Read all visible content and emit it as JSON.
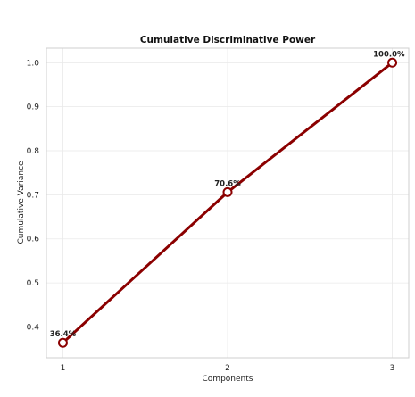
{
  "chart_data": {
    "type": "line",
    "title": "Cumulative Discriminative Power",
    "xlabel": "Components",
    "ylabel": "Cumulative Variance",
    "x": [
      1,
      2,
      3
    ],
    "x_ticks": [
      "1",
      "2",
      "3"
    ],
    "y_ticks": [
      "0.4",
      "0.5",
      "0.6",
      "0.7",
      "0.8",
      "0.9",
      "1.0"
    ],
    "xlim": [
      0.9,
      3.1
    ],
    "ylim": [
      0.33,
      1.033
    ],
    "grid": true,
    "series": [
      {
        "values": [
          0.364,
          0.706,
          1.0
        ],
        "data_labels": [
          "36.4%",
          "70.6%",
          "100.0%"
        ],
        "color": "#8b0000",
        "marker": "hollow-circle"
      }
    ]
  }
}
